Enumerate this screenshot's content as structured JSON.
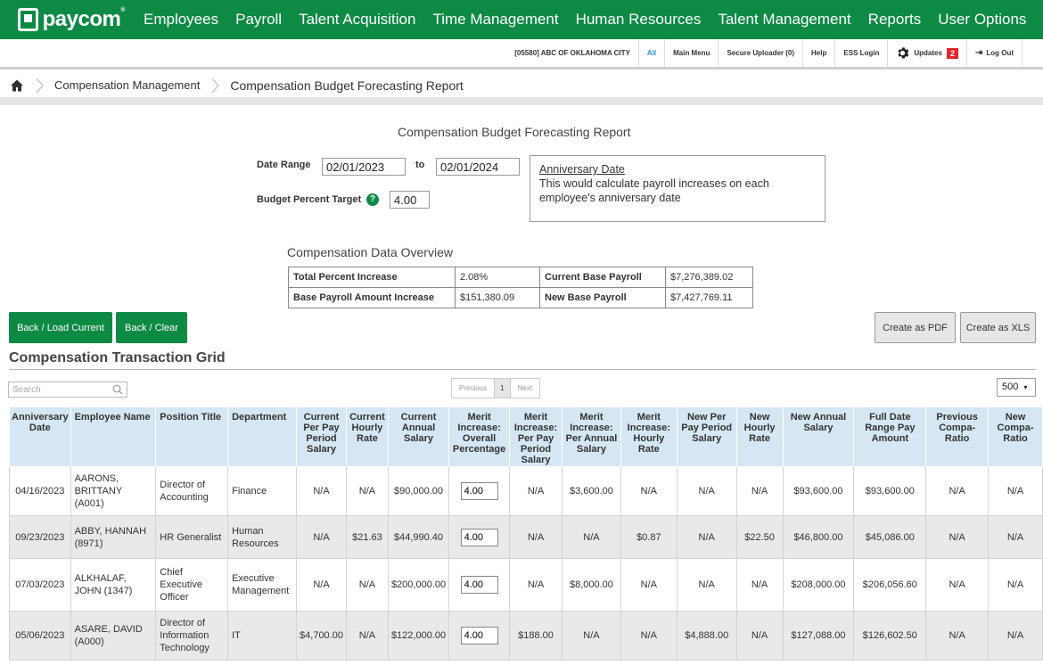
{
  "brand": {
    "name": "paycom",
    "mark": "®"
  },
  "nav": [
    "Employees",
    "Payroll",
    "Talent Acquisition",
    "Time Management",
    "Human Resources",
    "Talent Management",
    "Reports",
    "User Options"
  ],
  "util": {
    "company": "[05580] ABC OF OKLAHOMA CITY",
    "all": "All",
    "main_menu": "Main Menu",
    "secure_uploader": "Secure Uploader (0)",
    "help": "Help",
    "ess_login": "ESS Login",
    "updates": "Updates",
    "updates_count": "2",
    "logout": "Log Out"
  },
  "breadcrumb": {
    "parent": "Compensation Management",
    "current": "Compensation Budget Forecasting Report"
  },
  "report": {
    "title": "Compensation Budget Forecasting Report",
    "date_range_label": "Date Range",
    "from_date": "02/01/2023",
    "to_label": "to",
    "to_date": "02/01/2024",
    "budget_label": "Budget Percent Target",
    "budget_value": "4.00",
    "help": "?"
  },
  "info": {
    "title": "Anniversary Date",
    "text": "This would calculate payroll increases on each employee's anniversary date"
  },
  "overview": {
    "title": "Compensation Data Overview",
    "rows": [
      [
        "Total Percent Increase",
        "2.08%",
        "Current Base Payroll",
        "$7,276,389.02"
      ],
      [
        "Base Payroll Amount Increase",
        "$151,380.09",
        "New Base Payroll",
        "$7,427,769.11"
      ]
    ]
  },
  "buttons": {
    "back_load": "Back / Load Current",
    "back_clear": "Back / Clear",
    "pdf": "Create as PDF",
    "xls": "Create as XLS"
  },
  "grid": {
    "title": "Compensation Transaction Grid",
    "search_placeholder": "Search",
    "pager": {
      "previous": "Previous",
      "page": "1",
      "next": "Next"
    },
    "page_size": "500",
    "columns": [
      "Anniversary Date",
      "Employee Name",
      "Position Title",
      "Department",
      "Current Per Pay Period Salary",
      "Current Hourly Rate",
      "Current Annual Salary",
      "Merit Increase: Overall Percentage",
      "Merit Increase: Per Pay Period Salary",
      "Merit Increase: Per Annual Salary",
      "Merit Increase: Hourly Rate",
      "New Per Pay Period Salary",
      "New Hourly Rate",
      "New Annual Salary",
      "Full Date Range Pay Amount",
      "Previous Compa-Ratio",
      "New Compa-Ratio"
    ],
    "rows": [
      [
        "04/16/2023",
        "AARONS, BRITTANY (A001)",
        "Director of Accounting",
        "Finance",
        "N/A",
        "N/A",
        "$90,000.00",
        "4.00",
        "N/A",
        "$3,600.00",
        "N/A",
        "N/A",
        "N/A",
        "$93,600.00",
        "$93,600.00",
        "N/A",
        "N/A"
      ],
      [
        "09/23/2023",
        "ABBY, HANNAH (8971)",
        "HR Generalist",
        "Human Resources",
        "N/A",
        "$21.63",
        "$44,990.40",
        "4.00",
        "N/A",
        "N/A",
        "$0.87",
        "N/A",
        "$22.50",
        "$46,800.00",
        "$45,086.00",
        "N/A",
        "N/A"
      ],
      [
        "07/03/2023",
        "ALKHALAF, JOHN (1347)",
        "Chief Executive Officer",
        "Executive Management",
        "N/A",
        "N/A",
        "$200,000.00",
        "4.00",
        "N/A",
        "$8,000.00",
        "N/A",
        "N/A",
        "N/A",
        "$208,000.00",
        "$206,056.60",
        "N/A",
        "N/A"
      ],
      [
        "05/06/2023",
        "ASARE, DAVID (A000)",
        "Director of Information Technology",
        "IT",
        "$4,700.00",
        "N/A",
        "$122,000.00",
        "4.00",
        "$188.00",
        "N/A",
        "N/A",
        "$4,888.00",
        "N/A",
        "$127,088.00",
        "$126,602.50",
        "N/A",
        "N/A"
      ]
    ]
  }
}
